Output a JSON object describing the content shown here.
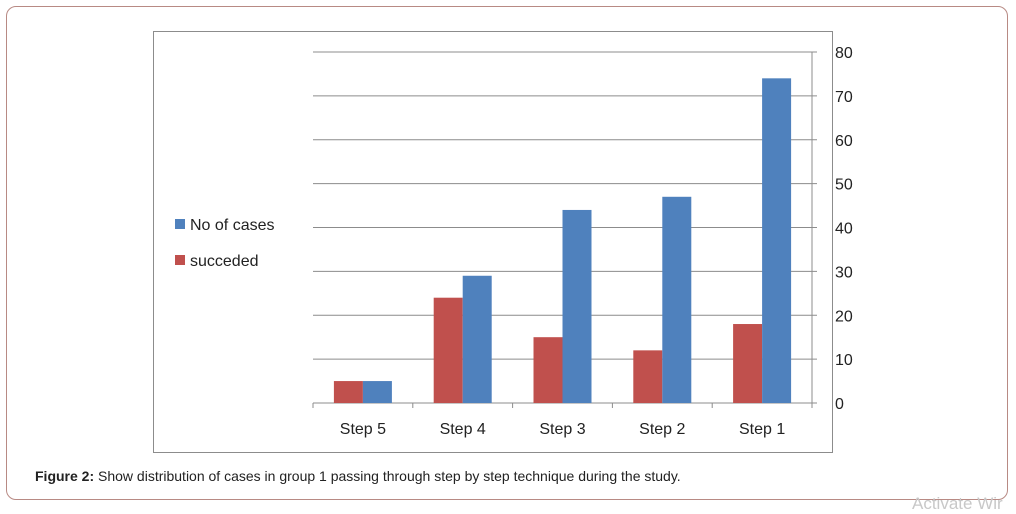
{
  "chart_data": {
    "type": "bar",
    "categories": [
      "Step 5",
      "Step 4",
      "Step 3",
      "Step 2",
      "Step 1"
    ],
    "series": [
      {
        "name": "succeded",
        "color": "#c0504d",
        "values": [
          5,
          24,
          15,
          12,
          18
        ]
      },
      {
        "name": "No of cases",
        "color": "#4f81bd",
        "values": [
          5,
          29,
          44,
          47,
          74
        ]
      }
    ],
    "ylim": [
      0,
      80
    ],
    "yticks": [
      0,
      10,
      20,
      30,
      40,
      50,
      60,
      70,
      80
    ],
    "y_axis_side": "right",
    "grid": true,
    "legend": "left",
    "legend_order": [
      "No of cases",
      "succeded"
    ]
  },
  "caption": {
    "label": "Figure 2:",
    "text": " Show distribution of cases in group 1 passing through step by step technique during the study."
  },
  "watermark": "Activate Wir"
}
